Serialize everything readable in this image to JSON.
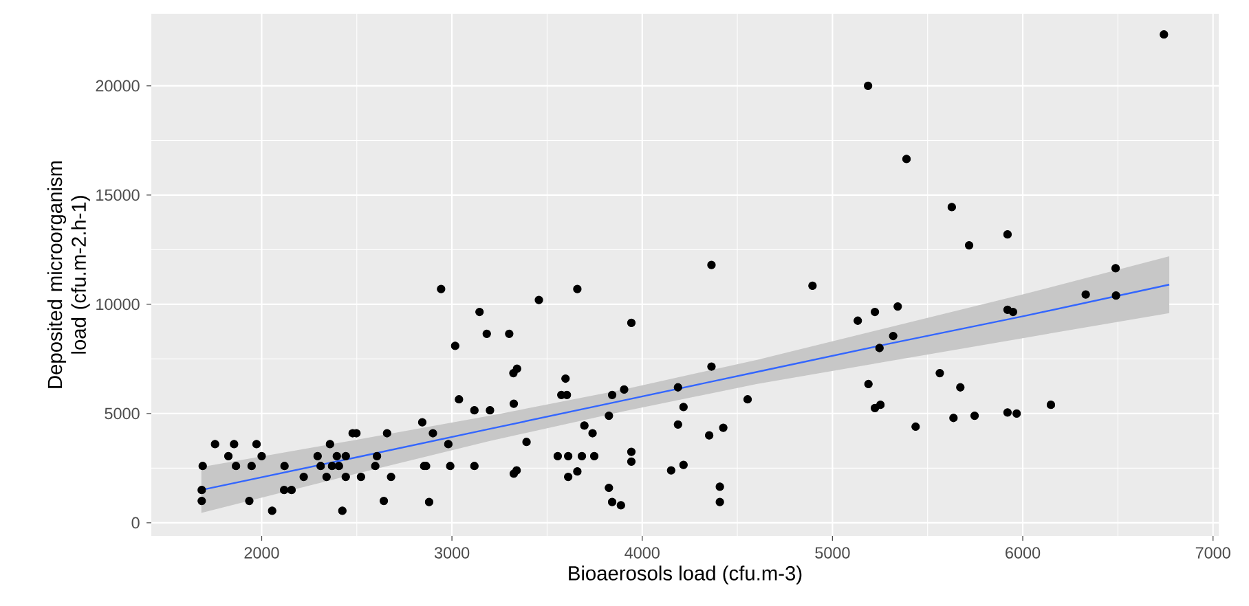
{
  "chart_data": {
    "type": "scatter",
    "xlabel": "Bioaerosols load (cfu.m-3)",
    "ylabel": "Deposited microorganism load (cfu.m-2.h-1)",
    "xlim": [
      1420,
      7030
    ],
    "ylim": [
      -600,
      23300
    ],
    "xticks": [
      2000,
      3000,
      4000,
      5000,
      6000,
      7000
    ],
    "yticks": [
      0,
      5000,
      10000,
      15000,
      20000
    ],
    "grid": true,
    "series": [
      {
        "color": "#000000",
        "marker": "circle",
        "x": [
          1685,
          1685,
          1690,
          1755,
          1825,
          1855,
          1865,
          1935,
          1947,
          1973,
          2000,
          2055,
          2120,
          2118,
          2157,
          2221,
          2294,
          2310,
          2341,
          2359,
          2370,
          2395,
          2406,
          2424,
          2442,
          2442,
          2478,
          2498,
          2522,
          2597,
          2606,
          2642,
          2659,
          2680,
          2844,
          2854,
          2864,
          2880,
          2900,
          2943,
          2981,
          2991,
          3017,
          3037,
          3118,
          3118,
          3145,
          3183,
          3200,
          3301,
          3323,
          3325,
          3325,
          3342,
          3340,
          3392,
          3457,
          3556,
          3611,
          3611,
          3659,
          3659,
          3597,
          3575,
          3604,
          3683,
          3696,
          3739,
          3748,
          3825,
          3825,
          3842,
          3842,
          3888,
          3905,
          3943,
          3943,
          3943,
          4152,
          4188,
          4188,
          4217,
          4217,
          4352,
          4364,
          4364,
          4408,
          4408,
          4426,
          4554,
          4895,
          5133,
          5223,
          5189,
          5223,
          5252,
          5247,
          5319,
          5187,
          5389,
          5627,
          5718,
          5920,
          6742,
          6488,
          6331,
          6490,
          5920,
          5949,
          5343,
          5564,
          5672,
          5437,
          5636,
          5747,
          5920,
          5968,
          6148
        ],
        "values": [
          1500,
          1000,
          2600,
          3600,
          3050,
          3600,
          2600,
          1000,
          2600,
          3600,
          3050,
          550,
          2600,
          1500,
          1500,
          2100,
          3050,
          2600,
          2100,
          3600,
          2600,
          3050,
          2600,
          550,
          2100,
          3050,
          4100,
          4100,
          2100,
          2600,
          3050,
          1000,
          4100,
          2100,
          4600,
          2600,
          2600,
          950,
          4100,
          10700,
          3600,
          2600,
          8100,
          5650,
          5150,
          2600,
          9650,
          8650,
          5150,
          8650,
          6850,
          5450,
          2250,
          7050,
          2400,
          3700,
          10200,
          3050,
          3050,
          2100,
          10700,
          2350,
          6600,
          5850,
          5850,
          3050,
          4450,
          4100,
          3050,
          4900,
          1600,
          5850,
          950,
          800,
          6100,
          9150,
          3250,
          2800,
          2400,
          6200,
          4500,
          5300,
          2650,
          4000,
          7150,
          11800,
          1650,
          950,
          4350,
          5650,
          10850,
          9250,
          9650,
          6350,
          5250,
          5400,
          8000,
          8550,
          20000,
          16650,
          14450,
          12700,
          13200,
          22350,
          11650,
          10450,
          10400,
          9750,
          9650,
          9900,
          6850,
          6200,
          4400,
          4800,
          4900,
          5050,
          5000,
          5400
        ]
      },
      {
        "type": "line",
        "color": "#3366ff",
        "x": [
          1683,
          2500,
          3200,
          3900,
          4600,
          5300,
          6000,
          6770
        ],
        "values": [
          1500,
          3000,
          4300,
          5600,
          6900,
          8200,
          9450,
          10900
        ],
        "lower": [
          450,
          2250,
          3750,
          5100,
          6350,
          7400,
          8450,
          9600
        ],
        "upper": [
          2550,
          3800,
          4900,
          6100,
          7450,
          8950,
          10450,
          12200
        ]
      }
    ]
  }
}
